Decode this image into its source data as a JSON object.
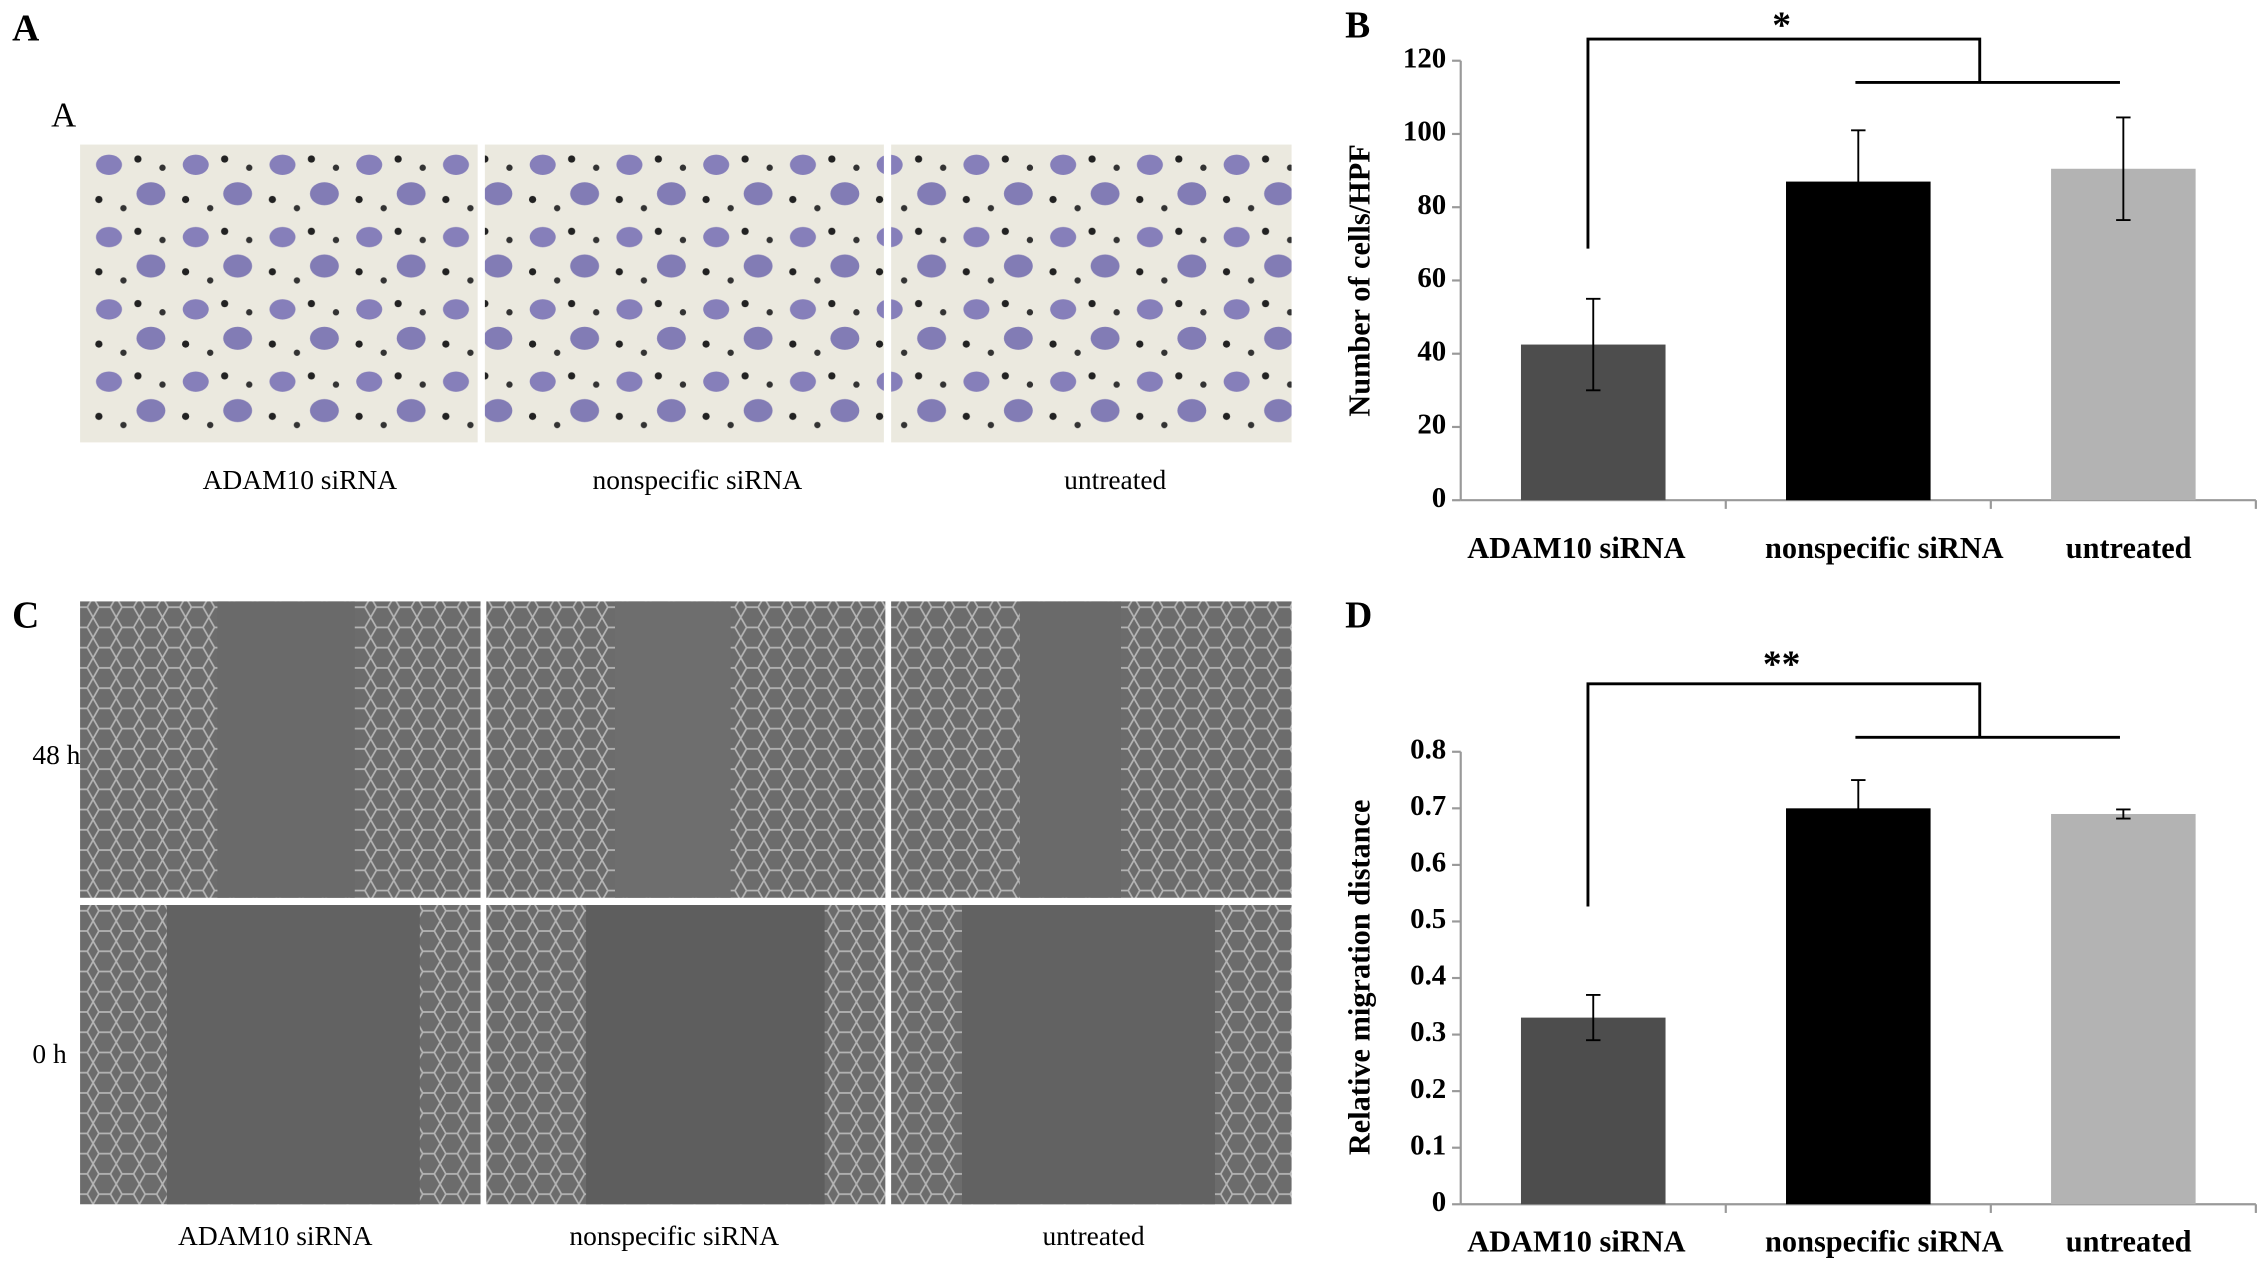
{
  "panels": {
    "A": {
      "letter": "A",
      "sublabel": "A",
      "labels": [
        "ADAM10 siRNA",
        "nonspecific siRNA",
        "untreated"
      ]
    },
    "C": {
      "letter": "C",
      "rows": [
        "48 h",
        "0 h"
      ],
      "labels": [
        "ADAM10 siRNA",
        "nonspecific siRNA",
        "untreated"
      ]
    }
  },
  "chart_data": [
    {
      "type": "bar",
      "panel": "B",
      "ylabel": "Number of cells/HPF",
      "annotation": "*",
      "categories": [
        "ADAM10 siRNA",
        "nonspecific siRNA",
        "untreated"
      ],
      "values": [
        42.5,
        87,
        90.5
      ],
      "errors": [
        12.5,
        14,
        14
      ],
      "colors": [
        "#4d4d4d",
        "#000000",
        "#b3b3b3"
      ],
      "ylim": [
        0,
        120
      ],
      "yticks": [
        0,
        20,
        40,
        60,
        80,
        100,
        120
      ]
    },
    {
      "type": "bar",
      "panel": "D",
      "ylabel": "Relative migration distance",
      "annotation": "**",
      "categories": [
        "ADAM10 siRNA",
        "nonspecific siRNA",
        "untreated"
      ],
      "values": [
        0.33,
        0.7,
        0.69
      ],
      "errors": [
        0.04,
        0.05,
        0.008
      ],
      "colors": [
        "#4d4d4d",
        "#000000",
        "#b3b3b3"
      ],
      "ylim": [
        0,
        0.8
      ],
      "yticks": [
        0,
        0.1,
        0.2,
        0.3,
        0.4,
        0.5,
        0.6,
        0.7,
        0.8
      ]
    }
  ]
}
